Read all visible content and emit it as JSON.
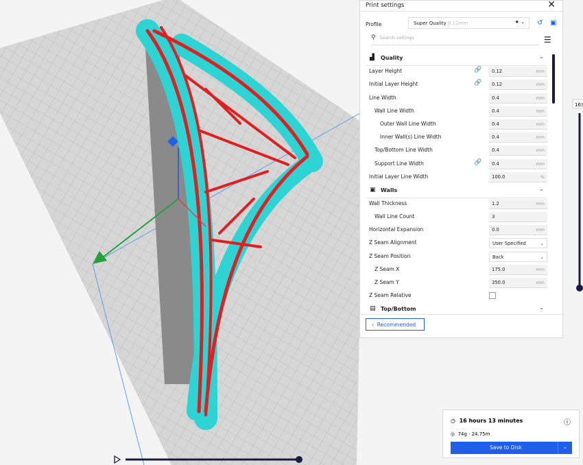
{
  "panel": {
    "title": "Print settings",
    "profile_label": "Profile",
    "profile": {
      "name": "Super Quality",
      "layer": "0.12mm"
    },
    "search_placeholder": "Search settings",
    "sections": [
      {
        "title": "Quality",
        "settings": [
          {
            "label": "Layer Height",
            "value": "0.12",
            "unit": "mm",
            "linked": true,
            "control": "text"
          },
          {
            "label": "Initial Layer Height",
            "value": "0.12",
            "unit": "mm",
            "linked": true,
            "control": "text"
          },
          {
            "label": "Line Width",
            "value": "0.4",
            "unit": "mm",
            "linked": false,
            "control": "text"
          },
          {
            "label": "Wall Line Width",
            "value": "0.4",
            "unit": "mm",
            "linked": false,
            "control": "text"
          },
          {
            "label": "Outer Wall Line Width",
            "value": "0.4",
            "unit": "mm",
            "linked": false,
            "control": "text"
          },
          {
            "label": "Inner Wall(s) Line Width",
            "value": "0.4",
            "unit": "mm",
            "linked": false,
            "control": "text"
          },
          {
            "label": "Top/Bottom Line Width",
            "value": "0.4",
            "unit": "mm",
            "linked": false,
            "control": "text"
          },
          {
            "label": "Support Line Width",
            "value": "0.4",
            "unit": "mm",
            "linked": true,
            "control": "text"
          },
          {
            "label": "Initial Layer Line Width",
            "value": "100.0",
            "unit": "%",
            "linked": false,
            "control": "text"
          }
        ]
      },
      {
        "title": "Walls",
        "settings": [
          {
            "label": "Wall Thickness",
            "value": "1.2",
            "unit": "mm",
            "linked": false,
            "control": "text"
          },
          {
            "label": "Wall Line Count",
            "value": "3",
            "linked": false,
            "control": "text"
          },
          {
            "label": "Horizontal Expansion",
            "value": "0.0",
            "unit": "mm",
            "linked": false,
            "control": "text"
          },
          {
            "label": "Z Seam Alignment",
            "value": "User Specified",
            "linked": false,
            "control": "dropdown"
          },
          {
            "label": "Z Seam Position",
            "value": "Back",
            "linked": false,
            "control": "dropdown"
          },
          {
            "label": "Z Seam X",
            "value": "175.0",
            "unit": "mm",
            "linked": false,
            "control": "text"
          },
          {
            "label": "Z Seam Y",
            "value": "350.0",
            "unit": "mm",
            "linked": false,
            "control": "text"
          },
          {
            "label": "Z Seam Relative",
            "checked": false,
            "linked": false,
            "control": "checkbox"
          }
        ]
      },
      {
        "title": "Top/Bottom",
        "settings": []
      }
    ],
    "recommended": "Recommended"
  },
  "layer_slider": {
    "label": "163"
  },
  "estimate": {
    "time": "16 hours 13 minutes",
    "material": "74g · 24.75m",
    "button": "Save to Disk"
  }
}
